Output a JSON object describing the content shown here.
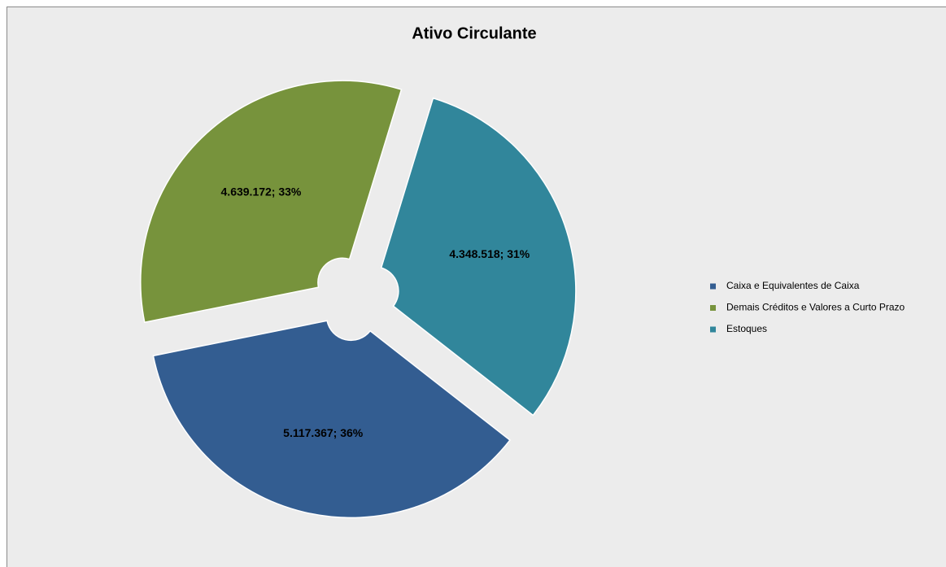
{
  "chart_data": {
    "type": "pie",
    "title": "Ativo Circulante",
    "categories": [
      "Caixa e Equivalentes de Caixa",
      "Demais Créditos e Valores a Curto Prazo",
      "Estoques"
    ],
    "values": [
      5117367,
      4639172,
      4348518
    ],
    "value_labels": [
      "5.117.367; 36%",
      "4.639.172; 33%",
      "4.348.518; 31%"
    ],
    "colors": [
      "#335d91",
      "#77933c",
      "#31869b"
    ],
    "legend": "right"
  }
}
